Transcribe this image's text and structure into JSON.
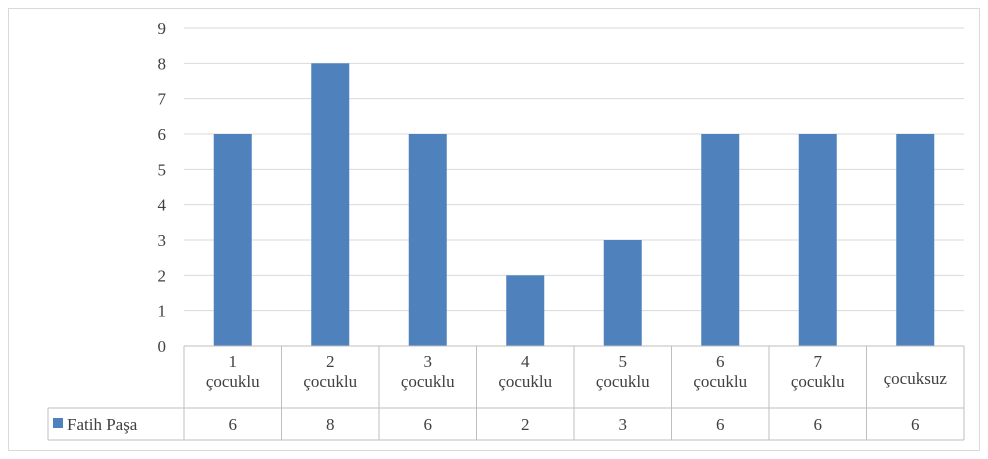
{
  "chart_data": {
    "type": "bar",
    "categories": [
      [
        "1",
        "çocuklu"
      ],
      [
        "2",
        "çocuklu"
      ],
      [
        "3",
        "çocuklu"
      ],
      [
        "4",
        "çocuklu"
      ],
      [
        "5",
        "çocuklu"
      ],
      [
        "6",
        "çocuklu"
      ],
      [
        "7",
        "çocuklu"
      ],
      [
        "çocuksuz"
      ]
    ],
    "series": [
      {
        "name": "Fatih Paşa",
        "values": [
          6,
          8,
          6,
          2,
          3,
          6,
          6,
          6
        ]
      }
    ],
    "y_ticks": [
      "0",
      "1",
      "2",
      "3",
      "4",
      "5",
      "6",
      "7",
      "8",
      "9"
    ],
    "ylim": [
      0,
      9
    ],
    "grid": true,
    "legend": "data-table-left",
    "title": "",
    "xlabel": "",
    "ylabel": "",
    "colors": {
      "bar": "#4f81bd",
      "grid": "#d9d9d9",
      "axis": "#bfbfbf",
      "text": "#404040"
    }
  }
}
